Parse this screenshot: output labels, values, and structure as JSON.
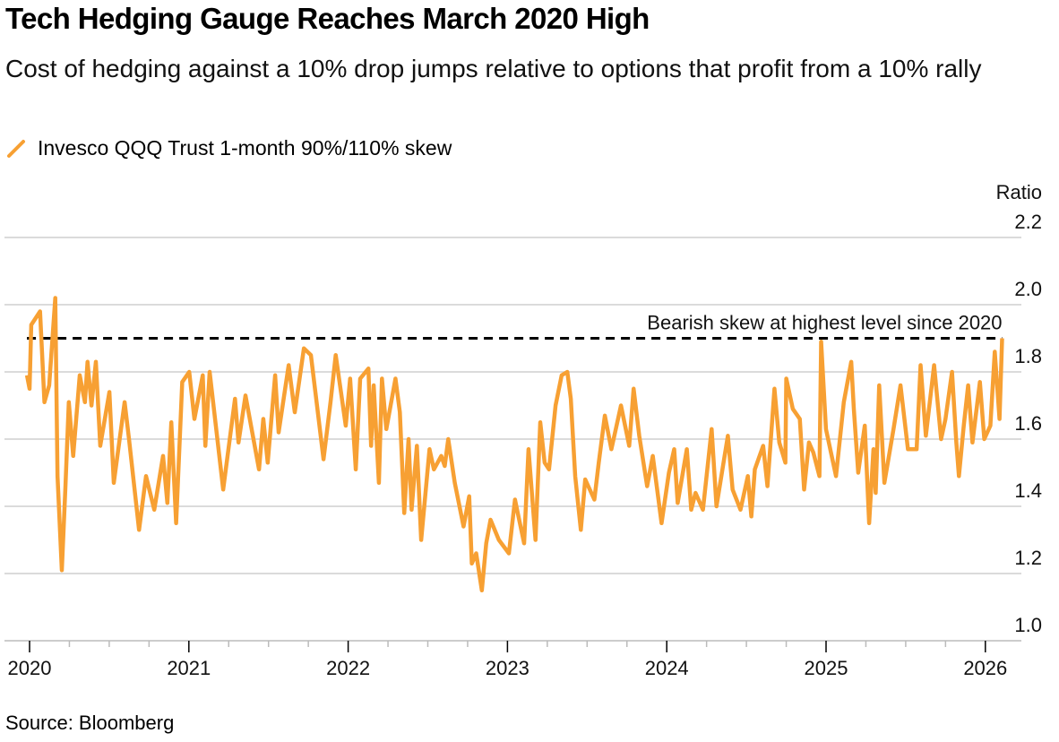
{
  "chart_data": {
    "type": "line",
    "title": "Tech Hedging Gauge Reaches March 2020 High",
    "subtitle": "Cost of hedging against a 10% drop jumps relative to options that profit from a 10% rally",
    "ylabel": "Ratio",
    "ylim": [
      1.0,
      2.2
    ],
    "yticks": [
      "2.2",
      "2.0",
      "1.8",
      "1.6",
      "1.4",
      "1.2",
      "1.0"
    ],
    "xticks": [
      "2020",
      "2021",
      "2022",
      "2023",
      "2024",
      "2025",
      "2026"
    ],
    "grid": true,
    "legend_placement": "top-left",
    "source": "Source: Bloomberg",
    "annotation": {
      "text": "Bearish skew at highest level since 2020",
      "value": 1.9,
      "from": "2019-12-26",
      "to": "2026-02-08"
    },
    "series": [
      {
        "name": "Invesco QQQ Trust 1-month 90%/110% skew",
        "color": "#f7a033",
        "points": [
          [
            "2019-12-26",
            1.79
          ],
          [
            "2020-01-01",
            1.75
          ],
          [
            "2020-01-05",
            1.94
          ],
          [
            "2020-01-25",
            1.98
          ],
          [
            "2020-02-04",
            1.71
          ],
          [
            "2020-02-15",
            1.76
          ],
          [
            "2020-02-29",
            2.02
          ],
          [
            "2020-03-05",
            1.49
          ],
          [
            "2020-03-15",
            1.21
          ],
          [
            "2020-03-23",
            1.45
          ],
          [
            "2020-03-31",
            1.71
          ],
          [
            "2020-04-10",
            1.55
          ],
          [
            "2020-04-25",
            1.79
          ],
          [
            "2020-05-07",
            1.71
          ],
          [
            "2020-05-13",
            1.83
          ],
          [
            "2020-05-22",
            1.7
          ],
          [
            "2020-06-01",
            1.83
          ],
          [
            "2020-06-11",
            1.58
          ],
          [
            "2020-07-02",
            1.74
          ],
          [
            "2020-07-12",
            1.47
          ],
          [
            "2020-08-06",
            1.71
          ],
          [
            "2020-08-16",
            1.6
          ],
          [
            "2020-09-08",
            1.33
          ],
          [
            "2020-09-24",
            1.49
          ],
          [
            "2020-10-13",
            1.39
          ],
          [
            "2020-11-02",
            1.55
          ],
          [
            "2020-11-12",
            1.41
          ],
          [
            "2020-11-21",
            1.65
          ],
          [
            "2020-12-02",
            1.35
          ],
          [
            "2020-12-16",
            1.77
          ],
          [
            "2021-01-01",
            1.8
          ],
          [
            "2021-01-13",
            1.66
          ],
          [
            "2021-02-01",
            1.79
          ],
          [
            "2021-02-07",
            1.58
          ],
          [
            "2021-02-17",
            1.8
          ],
          [
            "2021-03-20",
            1.45
          ],
          [
            "2021-04-16",
            1.72
          ],
          [
            "2021-04-24",
            1.59
          ],
          [
            "2021-05-10",
            1.73
          ],
          [
            "2021-06-10",
            1.51
          ],
          [
            "2021-06-20",
            1.66
          ],
          [
            "2021-06-30",
            1.53
          ],
          [
            "2021-07-17",
            1.79
          ],
          [
            "2021-07-25",
            1.62
          ],
          [
            "2021-08-17",
            1.82
          ],
          [
            "2021-08-31",
            1.68
          ],
          [
            "2021-09-21",
            1.87
          ],
          [
            "2021-10-07",
            1.85
          ],
          [
            "2021-11-05",
            1.54
          ],
          [
            "2021-11-21",
            1.71
          ],
          [
            "2021-12-03",
            1.85
          ],
          [
            "2021-12-26",
            1.64
          ],
          [
            "2022-01-05",
            1.78
          ],
          [
            "2022-01-18",
            1.51
          ],
          [
            "2022-01-28",
            1.78
          ],
          [
            "2022-02-16",
            1.81
          ],
          [
            "2022-02-22",
            1.58
          ],
          [
            "2022-02-28",
            1.76
          ],
          [
            "2022-03-12",
            1.47
          ],
          [
            "2022-03-19",
            1.78
          ],
          [
            "2022-03-29",
            1.63
          ],
          [
            "2022-04-19",
            1.78
          ],
          [
            "2022-04-29",
            1.68
          ],
          [
            "2022-05-09",
            1.38
          ],
          [
            "2022-05-19",
            1.6
          ],
          [
            "2022-05-26",
            1.39
          ],
          [
            "2022-06-07",
            1.58
          ],
          [
            "2022-06-17",
            1.3
          ],
          [
            "2022-07-06",
            1.57
          ],
          [
            "2022-07-16",
            1.51
          ],
          [
            "2022-08-02",
            1.55
          ],
          [
            "2022-08-10",
            1.52
          ],
          [
            "2022-08-18",
            1.6
          ],
          [
            "2022-09-02",
            1.47
          ],
          [
            "2022-09-22",
            1.34
          ],
          [
            "2022-10-05",
            1.43
          ],
          [
            "2022-10-11",
            1.23
          ],
          [
            "2022-10-21",
            1.26
          ],
          [
            "2022-11-03",
            1.15
          ],
          [
            "2022-11-13",
            1.29
          ],
          [
            "2022-11-23",
            1.36
          ],
          [
            "2022-12-12",
            1.3
          ],
          [
            "2023-01-04",
            1.26
          ],
          [
            "2023-01-18",
            1.42
          ],
          [
            "2023-01-26",
            1.37
          ],
          [
            "2023-02-08",
            1.29
          ],
          [
            "2023-02-18",
            1.57
          ],
          [
            "2023-03-06",
            1.3
          ],
          [
            "2023-03-17",
            1.65
          ],
          [
            "2023-03-27",
            1.53
          ],
          [
            "2023-04-06",
            1.51
          ],
          [
            "2023-04-21",
            1.7
          ],
          [
            "2023-05-05",
            1.79
          ],
          [
            "2023-05-18",
            1.8
          ],
          [
            "2023-05-26",
            1.72
          ],
          [
            "2023-06-05",
            1.49
          ],
          [
            "2023-06-18",
            1.33
          ],
          [
            "2023-06-28",
            1.48
          ],
          [
            "2023-07-19",
            1.42
          ],
          [
            "2023-07-29",
            1.53
          ],
          [
            "2023-08-12",
            1.67
          ],
          [
            "2023-08-27",
            1.57
          ],
          [
            "2023-09-18",
            1.7
          ],
          [
            "2023-10-07",
            1.58
          ],
          [
            "2023-10-17",
            1.75
          ],
          [
            "2023-10-30",
            1.61
          ],
          [
            "2023-11-17",
            1.46
          ],
          [
            "2023-11-30",
            1.55
          ],
          [
            "2023-12-20",
            1.35
          ],
          [
            "2024-01-06",
            1.5
          ],
          [
            "2024-01-18",
            1.57
          ],
          [
            "2024-01-26",
            1.41
          ],
          [
            "2024-02-16",
            1.57
          ],
          [
            "2024-02-26",
            1.39
          ],
          [
            "2024-03-07",
            1.44
          ],
          [
            "2024-03-24",
            1.39
          ],
          [
            "2024-04-13",
            1.63
          ],
          [
            "2024-04-24",
            1.4
          ],
          [
            "2024-05-20",
            1.61
          ],
          [
            "2024-05-31",
            1.45
          ],
          [
            "2024-06-18",
            1.39
          ],
          [
            "2024-07-05",
            1.49
          ],
          [
            "2024-07-13",
            1.37
          ],
          [
            "2024-07-21",
            1.51
          ],
          [
            "2024-08-09",
            1.58
          ],
          [
            "2024-08-19",
            1.46
          ],
          [
            "2024-09-04",
            1.75
          ],
          [
            "2024-09-15",
            1.59
          ],
          [
            "2024-09-29",
            1.53
          ],
          [
            "2024-10-01",
            1.78
          ],
          [
            "2024-10-16",
            1.69
          ],
          [
            "2024-11-01",
            1.66
          ],
          [
            "2024-11-11",
            1.45
          ],
          [
            "2024-11-22",
            1.59
          ],
          [
            "2024-12-02",
            1.56
          ],
          [
            "2024-12-16",
            1.49
          ],
          [
            "2024-12-20",
            1.89
          ],
          [
            "2024-12-31",
            1.63
          ],
          [
            "2025-01-23",
            1.49
          ],
          [
            "2025-02-10",
            1.71
          ],
          [
            "2025-02-27",
            1.83
          ],
          [
            "2025-03-05",
            1.69
          ],
          [
            "2025-03-15",
            1.5
          ],
          [
            "2025-03-30",
            1.64
          ],
          [
            "2025-04-09",
            1.35
          ],
          [
            "2025-04-19",
            1.57
          ],
          [
            "2025-04-24",
            1.44
          ],
          [
            "2025-05-02",
            1.76
          ],
          [
            "2025-05-14",
            1.47
          ],
          [
            "2025-06-04",
            1.63
          ],
          [
            "2025-06-20",
            1.76
          ],
          [
            "2025-07-07",
            1.57
          ],
          [
            "2025-07-27",
            1.57
          ],
          [
            "2025-08-05",
            1.82
          ],
          [
            "2025-08-17",
            1.61
          ],
          [
            "2025-09-05",
            1.82
          ],
          [
            "2025-09-21",
            1.6
          ],
          [
            "2025-10-01",
            1.66
          ],
          [
            "2025-10-16",
            1.8
          ],
          [
            "2025-10-26",
            1.59
          ],
          [
            "2025-11-01",
            1.49
          ],
          [
            "2025-11-12",
            1.64
          ],
          [
            "2025-11-22",
            1.76
          ],
          [
            "2025-12-02",
            1.59
          ],
          [
            "2025-12-19",
            1.77
          ],
          [
            "2025-12-29",
            1.6
          ],
          [
            "2026-01-12",
            1.64
          ],
          [
            "2026-01-22",
            1.86
          ],
          [
            "2026-02-02",
            1.66
          ],
          [
            "2026-02-08",
            1.9
          ]
        ]
      }
    ]
  }
}
